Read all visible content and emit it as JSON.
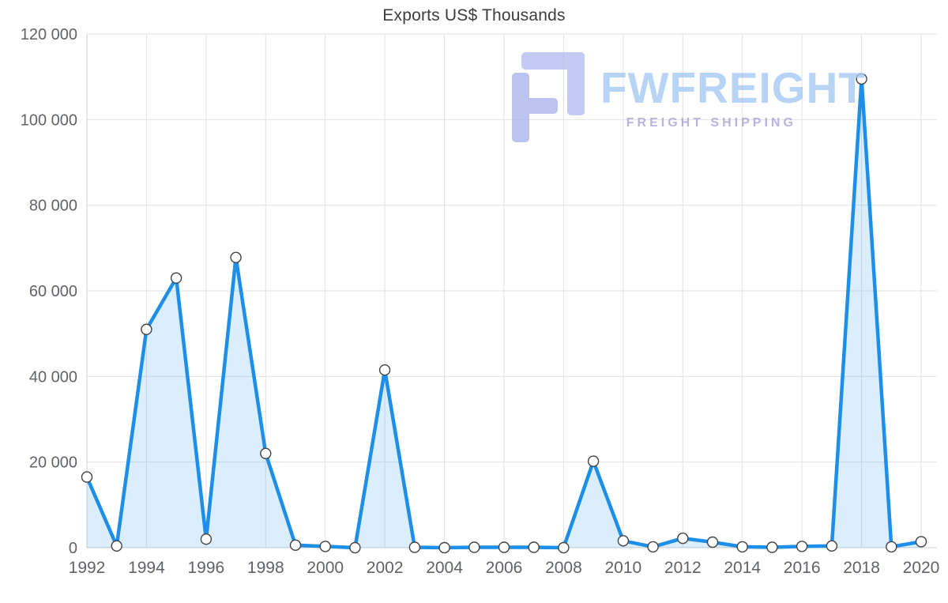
{
  "chart_data": {
    "type": "area",
    "title": "Exports US$ Thousands",
    "x": [
      1992,
      1993,
      1994,
      1995,
      1996,
      1997,
      1998,
      1999,
      2000,
      2001,
      2002,
      2003,
      2004,
      2005,
      2006,
      2007,
      2008,
      2009,
      2010,
      2011,
      2012,
      2013,
      2014,
      2015,
      2016,
      2017,
      2018,
      2019,
      2020
    ],
    "series": [
      {
        "name": "Exports US$ Thousands",
        "values": [
          16500,
          400,
          51000,
          63000,
          2000,
          67800,
          22000,
          600,
          300,
          0,
          41500,
          100,
          0,
          100,
          100,
          100,
          0,
          20200,
          1600,
          200,
          2200,
          1300,
          200,
          100,
          300,
          400,
          109500,
          200,
          1400
        ]
      }
    ],
    "ylim": [
      0,
      120000
    ],
    "y_tick_values": [
      0,
      20000,
      40000,
      60000,
      80000,
      100000,
      120000
    ],
    "y_tick_labels": [
      "0",
      "20 000",
      "40 000",
      "60 000",
      "80 000",
      "100 000",
      "120 000"
    ],
    "x_tick_values": [
      1992,
      1994,
      1996,
      1998,
      2000,
      2002,
      2004,
      2006,
      2008,
      2010,
      2012,
      2014,
      2016,
      2018,
      2020
    ],
    "x_tick_labels": [
      "1992",
      "1994",
      "1996",
      "1998",
      "2000",
      "2002",
      "2004",
      "2006",
      "2008",
      "2010",
      "2012",
      "2014",
      "2016",
      "2018",
      "2020"
    ],
    "grid": true,
    "legend": "none",
    "colors": {
      "line": "#1d8fe8",
      "area": "rgba(33, 150, 243, 0.16)",
      "marker_fill": "#ffffff",
      "marker_stroke": "#424242",
      "gridline": "#e2e2e2",
      "axis_line": "#cccccc",
      "tick_text": "#5f6368",
      "title_text": "#3c3c3c"
    }
  },
  "watermark": {
    "brand": "FWFREIGHT",
    "tagline": "FREIGHT SHIPPING",
    "brand_color": "#a4c7f4",
    "tagline_color": "#a79fd8",
    "icon_color": "#a9b3ea",
    "icon_color_light": "#b3bcf0"
  }
}
